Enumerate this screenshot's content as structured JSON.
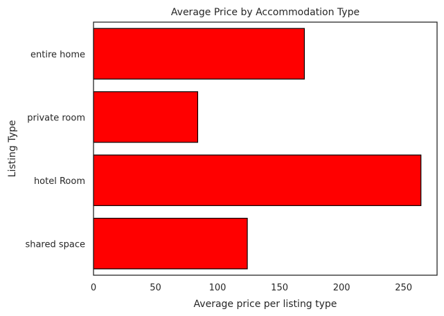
{
  "chart_data": {
    "type": "bar",
    "orientation": "horizontal",
    "title": "Average Price by Accommodation Type",
    "xlabel": "Average price per listing type",
    "ylabel": "Listing Type",
    "categories": [
      "entire home",
      "private room",
      "hotel Room",
      "shared space"
    ],
    "values": [
      170,
      84,
      264,
      124
    ],
    "xlim": [
      0,
      277
    ],
    "xticks": [
      0,
      50,
      100,
      150,
      200,
      250
    ],
    "bar_color": "#ff0000",
    "edge_color": "#000000",
    "grid": false
  }
}
